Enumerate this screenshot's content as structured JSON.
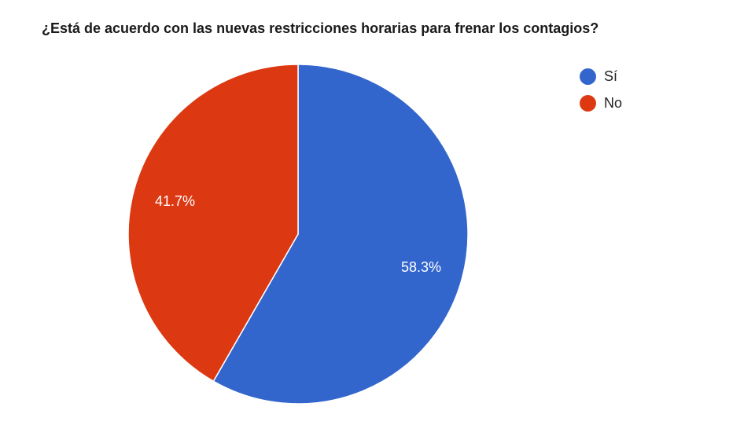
{
  "chart_data": {
    "type": "pie",
    "title": "¿Está de acuerdo con las nuevas restricciones horarias para frenar los contagios?",
    "categories": [
      "Sí",
      "No"
    ],
    "values": [
      58.3,
      41.7
    ],
    "labels": [
      "58.3%",
      "41.7%"
    ],
    "colors": [
      "#3366cc",
      "#dc3912"
    ],
    "legend_position": "right",
    "start_angle_deg": 0,
    "direction": "clockwise"
  },
  "legend": {
    "items": [
      {
        "label": "Sí",
        "color": "#3366cc"
      },
      {
        "label": "No",
        "color": "#dc3912"
      }
    ]
  }
}
